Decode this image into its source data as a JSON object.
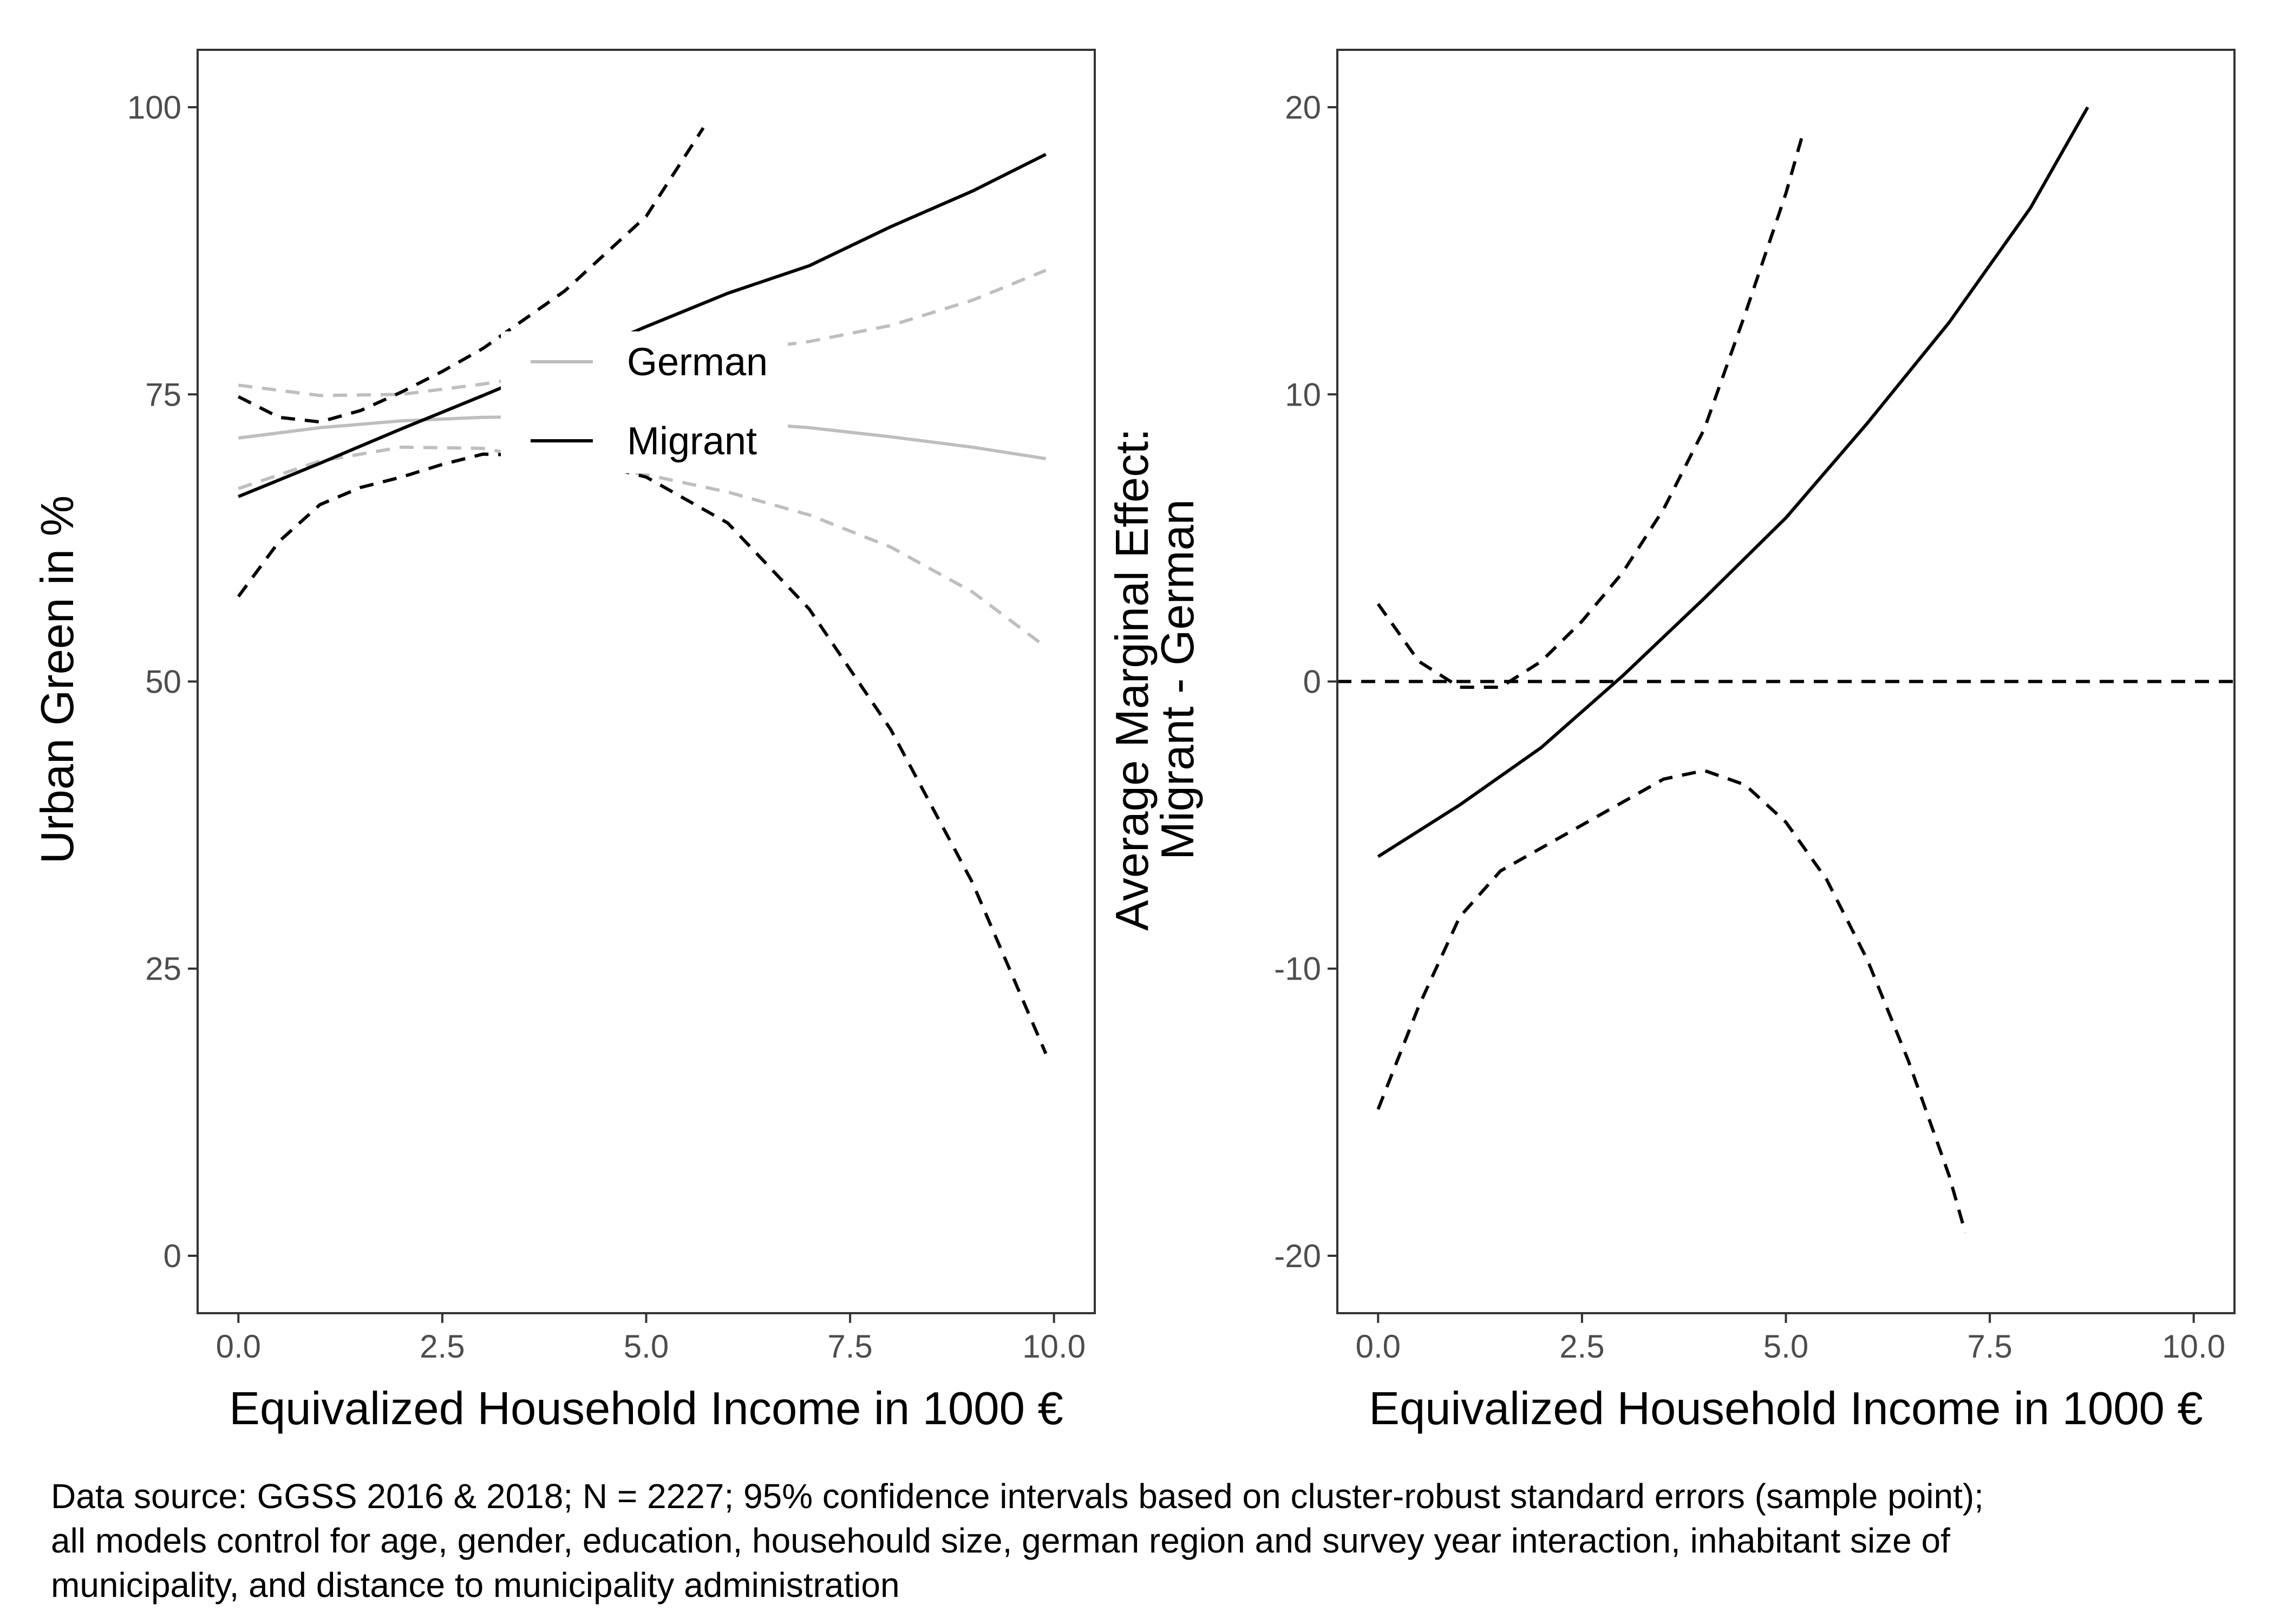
{
  "chart_data": [
    {
      "type": "line",
      "ylabel": "Urban Green in %",
      "xlabel": "Equivalized Household Income in 1000 €",
      "xlim": [
        -0.5,
        10.5
      ],
      "ylim": [
        -5,
        105
      ],
      "xticks": [
        0,
        2.5,
        5,
        7.5,
        10
      ],
      "xtick_labels": [
        "0.0",
        "2.5",
        "5.0",
        "7.5",
        "10.0"
      ],
      "yticks": [
        0,
        25,
        50,
        75,
        100
      ],
      "ytick_labels": [
        "0",
        "25",
        "50",
        "75",
        "100"
      ],
      "grid": false,
      "legend": {
        "position": "inside-center",
        "entries": [
          "German",
          "Migrant"
        ]
      },
      "series": [
        {
          "name": "German",
          "role": "estimate",
          "color": "#bebebe",
          "dash": "solid",
          "x": [
            0,
            1,
            2,
            3,
            4,
            5,
            6,
            7,
            8,
            9,
            9.9
          ],
          "y": [
            71.2,
            72.1,
            72.7,
            73.0,
            73.1,
            73.0,
            72.6,
            72.1,
            71.3,
            70.4,
            69.4
          ]
        },
        {
          "name": "German",
          "role": "ci-upper",
          "color": "#bebebe",
          "dash": "dashed",
          "x": [
            0,
            1,
            2,
            3,
            4,
            5,
            6,
            7,
            8,
            9,
            9.9
          ],
          "y": [
            75.8,
            74.9,
            75.0,
            75.9,
            77.0,
            77.9,
            78.7,
            79.6,
            81.0,
            83.2,
            85.8
          ]
        },
        {
          "name": "German",
          "role": "ci-lower",
          "color": "#bebebe",
          "dash": "dashed",
          "x": [
            0,
            1,
            2,
            3,
            4,
            5,
            6,
            7,
            8,
            9,
            9.9
          ],
          "y": [
            66.8,
            69.2,
            70.4,
            70.3,
            69.0,
            68.0,
            66.5,
            64.5,
            61.7,
            57.8,
            53.0
          ]
        },
        {
          "name": "Migrant",
          "role": "estimate",
          "color": "#000000",
          "dash": "solid",
          "x": [
            0,
            1,
            2,
            3,
            4,
            5,
            6,
            7,
            8,
            9,
            9.9
          ],
          "y": [
            66.1,
            69.0,
            72.0,
            74.9,
            77.9,
            80.9,
            83.8,
            86.2,
            89.6,
            92.7,
            95.9
          ]
        },
        {
          "name": "Migrant",
          "role": "ci-upper",
          "color": "#000000",
          "dash": "dashed",
          "x": [
            0,
            0.5,
            1,
            1.5,
            2,
            2.5,
            3,
            4,
            5,
            5.7
          ],
          "y": [
            74.8,
            73.0,
            72.6,
            73.6,
            75.2,
            77.0,
            79.0,
            84.0,
            90.5,
            98.2
          ]
        },
        {
          "name": "Migrant",
          "role": "ci-lower",
          "color": "#000000",
          "dash": "dashed",
          "x": [
            0,
            0.5,
            1,
            1.5,
            2,
            2.5,
            3,
            4,
            5,
            6,
            7,
            8,
            9,
            9.9
          ],
          "y": [
            57.4,
            62.2,
            65.4,
            66.9,
            67.8,
            68.9,
            69.8,
            69.6,
            67.8,
            63.8,
            56.3,
            45.8,
            32.5,
            17.6
          ]
        }
      ]
    },
    {
      "type": "line",
      "ylabel": "Average Marginal Effect:\nMigrant - German",
      "ylabel_lines": [
        "Average Marginal Effect:",
        "Migrant - German"
      ],
      "xlabel": "Equivalized Household Income in 1000 €",
      "xlim": [
        -0.5,
        10.5
      ],
      "ylim": [
        -22,
        22
      ],
      "xticks": [
        0,
        2.5,
        5,
        7.5,
        10
      ],
      "xtick_labels": [
        "0.0",
        "2.5",
        "5.0",
        "7.5",
        "10.0"
      ],
      "yticks": [
        -20,
        -10,
        0,
        10,
        20
      ],
      "ytick_labels": [
        "-20",
        "-10",
        "0",
        "10",
        "20"
      ],
      "grid": false,
      "reference_line": {
        "y": 0,
        "dash": "dashed",
        "color": "#000000"
      },
      "series": [
        {
          "role": "estimate",
          "color": "#000000",
          "dash": "solid",
          "x": [
            0,
            1,
            2,
            3,
            4,
            5,
            6,
            7,
            8,
            8.7
          ],
          "y": [
            -6.1,
            -4.3,
            -2.3,
            0.2,
            2.9,
            5.7,
            9.0,
            12.5,
            16.5,
            20.0
          ]
        },
        {
          "role": "ci-upper",
          "color": "#000000",
          "dash": "dashed",
          "x": [
            0,
            0.5,
            1,
            1.5,
            2,
            2.5,
            3,
            3.5,
            4,
            4.5,
            5,
            5.2
          ],
          "y": [
            2.7,
            0.7,
            -0.2,
            -0.2,
            0.7,
            2.1,
            3.8,
            6.0,
            8.8,
            12.8,
            17.0,
            19.0
          ]
        },
        {
          "role": "ci-lower",
          "color": "#000000",
          "dash": "dashed",
          "x": [
            0,
            0.5,
            1,
            1.5,
            2,
            3,
            3.5,
            4,
            4.5,
            5,
            5.5,
            6,
            6.5,
            7,
            7.2
          ],
          "y": [
            -14.9,
            -11.3,
            -8.2,
            -6.6,
            -5.8,
            -4.2,
            -3.4,
            -3.1,
            -3.6,
            -4.9,
            -6.9,
            -9.7,
            -13.2,
            -17.2,
            -19.2
          ]
        }
      ]
    }
  ],
  "caption": {
    "line1": "Data source: GGSS 2016 & 2018; N = 2227; 95% confidence intervals based on cluster-robust standard errors (sample point);",
    "line2": "all models control for age, gender, education, househould size, german region and survey year interaction, inhabitant size of",
    "line3": "municipality, and distance to municipality administration"
  }
}
